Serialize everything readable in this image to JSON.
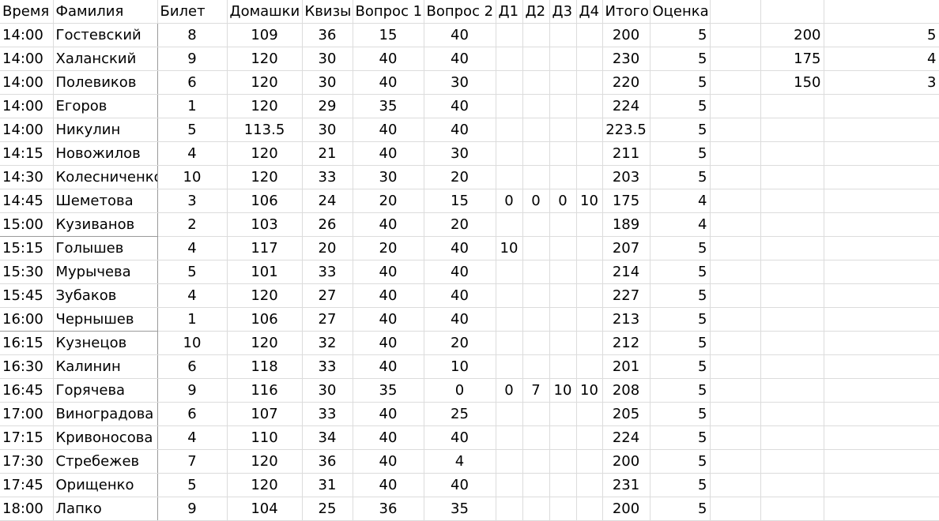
{
  "headers": [
    "Время",
    "Фамилия",
    "Билет",
    "Домашки",
    "Квизы",
    "Вопрос 1",
    "Вопрос 2",
    "Д1",
    "Д2",
    "Д3",
    "Д4",
    "Итого",
    "Оценка",
    "",
    "",
    ""
  ],
  "rows": [
    [
      "14:00",
      "Гостевский",
      "8",
      "109",
      "36",
      "15",
      "40",
      "",
      "",
      "",
      "",
      "200",
      "5",
      "",
      "200",
      "5"
    ],
    [
      "14:00",
      "Халанский",
      "9",
      "120",
      "30",
      "40",
      "40",
      "",
      "",
      "",
      "",
      "230",
      "5",
      "",
      "175",
      "4"
    ],
    [
      "14:00",
      "Полевиков",
      "6",
      "120",
      "30",
      "40",
      "30",
      "",
      "",
      "",
      "",
      "220",
      "5",
      "",
      "150",
      "3"
    ],
    [
      "14:00",
      "Егоров",
      "1",
      "120",
      "29",
      "35",
      "40",
      "",
      "",
      "",
      "",
      "224",
      "5",
      "",
      "",
      ""
    ],
    [
      "14:00",
      "Никулин",
      "5",
      "113.5",
      "30",
      "40",
      "40",
      "",
      "",
      "",
      "",
      "223.5",
      "5",
      "",
      "",
      ""
    ],
    [
      "14:15",
      "Новожилов",
      "4",
      "120",
      "21",
      "40",
      "30",
      "",
      "",
      "",
      "",
      "211",
      "5",
      "",
      "",
      ""
    ],
    [
      "14:30",
      "Колесниченко",
      "10",
      "120",
      "33",
      "30",
      "20",
      "",
      "",
      "",
      "",
      "203",
      "5",
      "",
      "",
      ""
    ],
    [
      "14:45",
      "Шеметова",
      "3",
      "106",
      "24",
      "20",
      "15",
      "0",
      "0",
      "0",
      "10",
      "175",
      "4",
      "",
      "",
      ""
    ],
    [
      "15:00",
      "Кузиванов",
      "2",
      "103",
      "26",
      "40",
      "20",
      "",
      "",
      "",
      "",
      "189",
      "4",
      "",
      "",
      ""
    ],
    [
      "15:15",
      "Голышев",
      "4",
      "117",
      "20",
      "20",
      "40",
      "10",
      "",
      "",
      "",
      "207",
      "5",
      "",
      "",
      ""
    ],
    [
      "15:30",
      "Мурычева",
      "5",
      "101",
      "33",
      "40",
      "40",
      "",
      "",
      "",
      "",
      "214",
      "5",
      "",
      "",
      ""
    ],
    [
      "15:45",
      "Зубаков",
      "4",
      "120",
      "27",
      "40",
      "40",
      "",
      "",
      "",
      "",
      "227",
      "5",
      "",
      "",
      ""
    ],
    [
      "16:00",
      "Чернышев",
      "1",
      "106",
      "27",
      "40",
      "40",
      "",
      "",
      "",
      "",
      "213",
      "5",
      "",
      "",
      ""
    ],
    [
      "16:15",
      "Кузнецов",
      "10",
      "120",
      "32",
      "40",
      "20",
      "",
      "",
      "",
      "",
      "212",
      "5",
      "",
      "",
      ""
    ],
    [
      "16:30",
      "Калинин",
      "6",
      "118",
      "33",
      "40",
      "10",
      "",
      "",
      "",
      "",
      "201",
      "5",
      "",
      "",
      ""
    ],
    [
      "16:45",
      "Горячева",
      "9",
      "116",
      "30",
      "35",
      "0",
      "0",
      "7",
      "10",
      "10",
      "208",
      "5",
      "",
      "",
      ""
    ],
    [
      "17:00",
      "Виноградова",
      "6",
      "107",
      "33",
      "40",
      "25",
      "",
      "",
      "",
      "",
      "205",
      "5",
      "",
      "",
      ""
    ],
    [
      "17:15",
      "Кривоносова",
      "4",
      "110",
      "34",
      "40",
      "40",
      "",
      "",
      "",
      "",
      "224",
      "5",
      "",
      "",
      ""
    ],
    [
      "17:30",
      "Стребежев",
      "7",
      "120",
      "36",
      "40",
      "4",
      "",
      "",
      "",
      "",
      "200",
      "5",
      "",
      "",
      ""
    ],
    [
      "17:45",
      "Орищенко",
      "5",
      "120",
      "31",
      "40",
      "40",
      "",
      "",
      "",
      "",
      "231",
      "5",
      "",
      "",
      ""
    ],
    [
      "18:00",
      "Лапко",
      "9",
      "104",
      "25",
      "36",
      "35",
      "",
      "",
      "",
      "",
      "200",
      "5",
      "",
      "",
      ""
    ]
  ]
}
